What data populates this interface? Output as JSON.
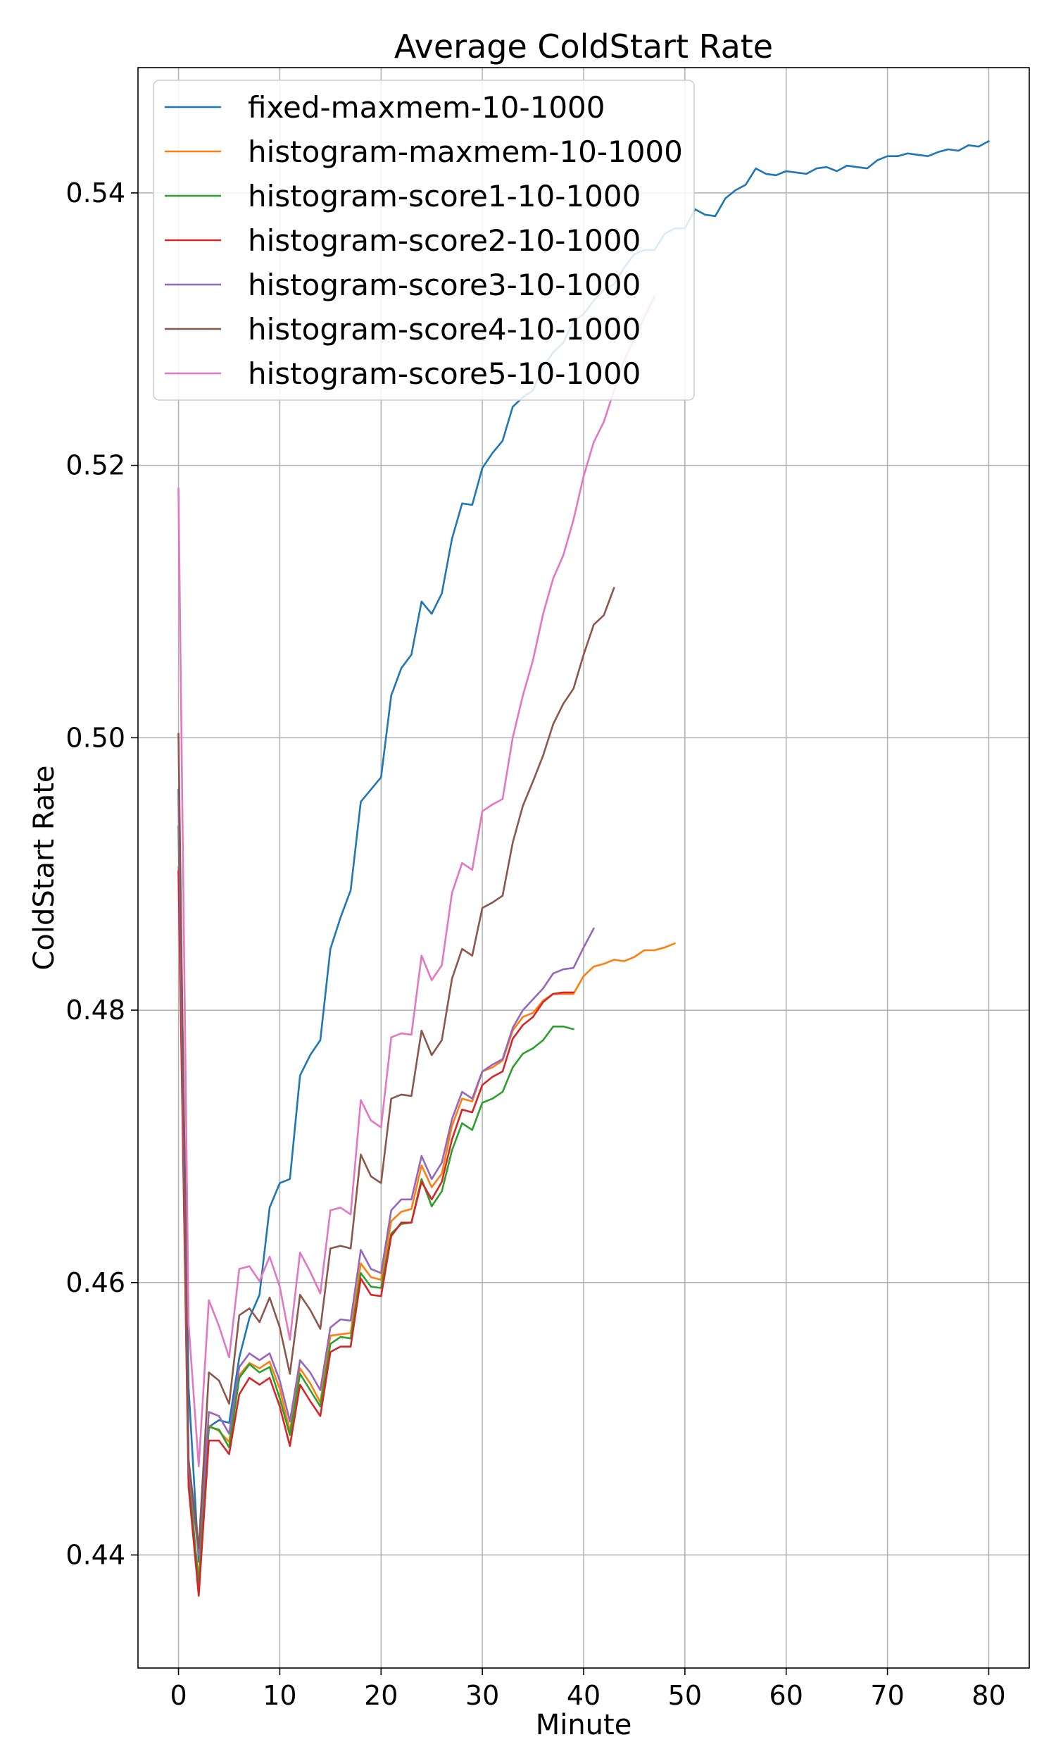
{
  "chart_data": {
    "type": "line",
    "title": "Average ColdStart Rate",
    "xlabel": "Minute",
    "ylabel": "ColdStart Rate",
    "xlim": [
      -4,
      84
    ],
    "ylim": [
      0.4317,
      0.5492
    ],
    "xticks": [
      0,
      10,
      20,
      30,
      40,
      50,
      60,
      70,
      80
    ],
    "yticks": [
      0.44,
      0.46,
      0.48,
      0.5,
      0.52,
      0.54
    ],
    "xtick_labels": [
      "0",
      "10",
      "20",
      "30",
      "40",
      "50",
      "60",
      "70",
      "80"
    ],
    "ytick_labels": [
      "0.44",
      "0.46",
      "0.48",
      "0.50",
      "0.52",
      "0.54"
    ],
    "grid": true,
    "legend_position": "upper-left",
    "series": [
      {
        "name": "fixed-maxmem-10-1000",
        "color": "#1f77b4",
        "x": [
          0,
          1,
          2,
          3,
          4,
          5,
          6,
          7,
          8,
          9,
          10,
          11,
          12,
          13,
          14,
          15,
          16,
          17,
          18,
          19,
          20,
          21,
          22,
          23,
          24,
          25,
          26,
          27,
          28,
          29,
          30,
          31,
          32,
          33,
          34,
          35,
          36,
          37,
          38,
          39,
          40,
          41,
          42,
          43,
          44,
          45,
          46,
          47,
          48,
          49,
          50,
          51,
          52,
          53,
          54,
          55,
          56,
          57,
          58,
          59,
          60,
          61,
          62,
          63,
          64,
          65,
          66,
          67,
          68,
          69,
          70,
          71,
          72,
          73,
          74,
          75,
          76,
          77,
          78,
          79,
          80
        ],
        "values": [
          0.4962,
          0.4523,
          0.4395,
          0.4494,
          0.4499,
          0.4497,
          0.4545,
          0.4574,
          0.4591,
          0.4655,
          0.4673,
          0.4676,
          0.4752,
          0.4767,
          0.4778,
          0.4845,
          0.4868,
          0.4888,
          0.4953,
          0.4962,
          0.4971,
          0.5031,
          0.5051,
          0.5061,
          0.51,
          0.5091,
          0.5106,
          0.5146,
          0.5172,
          0.5171,
          0.5198,
          0.5209,
          0.5218,
          0.5243,
          0.525,
          0.5255,
          0.5272,
          0.5283,
          0.529,
          0.5306,
          0.5311,
          0.5321,
          0.5329,
          0.5333,
          0.5345,
          0.5355,
          0.5358,
          0.5358,
          0.537,
          0.5374,
          0.5374,
          0.5388,
          0.5384,
          0.5383,
          0.5396,
          0.5402,
          0.5406,
          0.5418,
          0.5414,
          0.5413,
          0.5416,
          0.5415,
          0.5414,
          0.5418,
          0.5419,
          0.5416,
          0.542,
          0.5419,
          0.5418,
          0.5424,
          0.5427,
          0.5427,
          0.5429,
          0.5428,
          0.5427,
          0.543,
          0.5432,
          0.5431,
          0.5435,
          0.5434,
          0.5438
        ]
      },
      {
        "name": "histogram-maxmem-10-1000",
        "color": "#ff7f0e",
        "x": [
          0,
          1,
          2,
          3,
          4,
          5,
          6,
          7,
          8,
          9,
          10,
          11,
          12,
          13,
          14,
          15,
          16,
          17,
          18,
          19,
          20,
          21,
          22,
          23,
          24,
          25,
          26,
          27,
          28,
          29,
          30,
          31,
          32,
          33,
          34,
          35,
          36,
          37,
          38,
          39,
          40,
          41,
          42,
          43,
          44,
          45,
          46,
          47,
          48,
          49
        ],
        "values": [
          0.4905,
          0.445,
          0.4383,
          0.4495,
          0.4491,
          0.4483,
          0.4532,
          0.4541,
          0.4537,
          0.4542,
          0.4522,
          0.4491,
          0.4537,
          0.4526,
          0.4512,
          0.4561,
          0.4562,
          0.4563,
          0.4614,
          0.4604,
          0.4602,
          0.4645,
          0.4652,
          0.4654,
          0.4686,
          0.467,
          0.468,
          0.4715,
          0.4735,
          0.4733,
          0.4755,
          0.4758,
          0.4763,
          0.4785,
          0.4795,
          0.4798,
          0.4807,
          0.4812,
          0.4812,
          0.4812,
          0.4825,
          0.4832,
          0.4834,
          0.4837,
          0.4836,
          0.4839,
          0.4844,
          0.4844,
          0.4846,
          0.4849
        ]
      },
      {
        "name": "histogram-score1-10-1000",
        "color": "#2ca02c",
        "x": [
          0,
          1,
          2,
          3,
          4,
          5,
          6,
          7,
          8,
          9,
          10,
          11,
          12,
          13,
          14,
          15,
          16,
          17,
          18,
          19,
          20,
          21,
          22,
          23,
          24,
          25,
          26,
          27,
          28,
          29,
          30,
          31,
          32,
          33,
          34,
          35,
          36,
          37,
          38,
          39
        ],
        "values": [
          0.4935,
          0.446,
          0.4378,
          0.4494,
          0.4492,
          0.4479,
          0.453,
          0.454,
          0.4534,
          0.4538,
          0.4515,
          0.4488,
          0.4533,
          0.4521,
          0.4509,
          0.4555,
          0.456,
          0.4559,
          0.4607,
          0.4597,
          0.4596,
          0.4636,
          0.4643,
          0.4644,
          0.4676,
          0.4656,
          0.4667,
          0.4697,
          0.4717,
          0.4712,
          0.4732,
          0.4735,
          0.474,
          0.4758,
          0.4768,
          0.4772,
          0.4778,
          0.4788,
          0.4788,
          0.4786
        ]
      },
      {
        "name": "histogram-score2-10-1000",
        "color": "#d62728",
        "x": [
          0,
          1,
          2,
          3,
          4,
          5,
          6,
          7,
          8,
          9,
          10,
          11,
          12,
          13,
          14,
          15,
          16,
          17,
          18,
          19,
          20,
          21,
          22,
          23,
          24,
          25,
          26,
          27,
          28,
          29,
          30,
          31,
          32,
          33,
          34,
          35,
          36,
          37,
          38,
          39
        ],
        "values": [
          0.4902,
          0.445,
          0.437,
          0.4484,
          0.4484,
          0.4474,
          0.4518,
          0.453,
          0.4525,
          0.453,
          0.4509,
          0.448,
          0.4525,
          0.4513,
          0.4502,
          0.4549,
          0.4553,
          0.4553,
          0.4603,
          0.4591,
          0.459,
          0.4634,
          0.4644,
          0.4644,
          0.4674,
          0.4661,
          0.4674,
          0.4705,
          0.4727,
          0.4725,
          0.4745,
          0.4751,
          0.4755,
          0.4779,
          0.4789,
          0.4795,
          0.4806,
          0.4812,
          0.4813,
          0.4813
        ]
      },
      {
        "name": "histogram-score3-10-1000",
        "color": "#9467bd",
        "x": [
          0,
          1,
          2,
          3,
          4,
          5,
          6,
          7,
          8,
          9,
          10,
          11,
          12,
          13,
          14,
          15,
          16,
          17,
          18,
          19,
          20,
          21,
          22,
          23,
          24,
          25,
          26,
          27,
          28,
          29,
          30,
          31,
          32,
          33,
          34,
          35,
          36,
          37,
          38,
          39,
          40,
          41
        ],
        "values": [
          0.4955,
          0.4465,
          0.44,
          0.4505,
          0.4502,
          0.4489,
          0.4538,
          0.4548,
          0.4543,
          0.4548,
          0.4528,
          0.4498,
          0.4543,
          0.4534,
          0.4521,
          0.4567,
          0.4573,
          0.4572,
          0.4624,
          0.461,
          0.4607,
          0.4653,
          0.4661,
          0.4661,
          0.4693,
          0.4676,
          0.4688,
          0.472,
          0.474,
          0.4735,
          0.4755,
          0.476,
          0.4764,
          0.4787,
          0.48,
          0.4808,
          0.4816,
          0.4827,
          0.483,
          0.4831,
          0.4846,
          0.486
        ]
      },
      {
        "name": "histogram-score4-10-1000",
        "color": "#8c564b",
        "x": [
          0,
          1,
          2,
          3,
          4,
          5,
          6,
          7,
          8,
          9,
          10,
          11,
          12,
          13,
          14,
          15,
          16,
          17,
          18,
          19,
          20,
          21,
          22,
          23,
          24,
          25,
          26,
          27,
          28,
          29,
          30,
          31,
          32,
          33,
          34,
          35,
          36,
          37,
          38,
          39,
          40,
          41,
          42,
          43
        ],
        "values": [
          0.5003,
          0.447,
          0.4405,
          0.4534,
          0.4528,
          0.4511,
          0.4576,
          0.4581,
          0.4571,
          0.4589,
          0.4567,
          0.4533,
          0.4591,
          0.458,
          0.4566,
          0.4625,
          0.4627,
          0.4625,
          0.4694,
          0.4678,
          0.4673,
          0.4735,
          0.4738,
          0.4737,
          0.4785,
          0.4767,
          0.4778,
          0.4823,
          0.4845,
          0.484,
          0.4875,
          0.4879,
          0.4884,
          0.4923,
          0.495,
          0.4968,
          0.4987,
          0.501,
          0.5025,
          0.5036,
          0.5061,
          0.5083,
          0.509,
          0.511
        ]
      },
      {
        "name": "histogram-score5-10-1000",
        "color": "#e377c2",
        "x": [
          0,
          1,
          2,
          3,
          4,
          5,
          6,
          7,
          8,
          9,
          10,
          11,
          12,
          13,
          14,
          15,
          16,
          17,
          18,
          19,
          20,
          21,
          22,
          23,
          24,
          25,
          26,
          27,
          28,
          29,
          30,
          31,
          32,
          33,
          34,
          35,
          36,
          37,
          38,
          39,
          40,
          41,
          42,
          43,
          44,
          45,
          46,
          47
        ],
        "values": [
          0.5183,
          0.457,
          0.4465,
          0.4587,
          0.4568,
          0.4545,
          0.461,
          0.4612,
          0.4601,
          0.4619,
          0.4597,
          0.4558,
          0.4622,
          0.4608,
          0.4592,
          0.4653,
          0.4655,
          0.465,
          0.4734,
          0.4719,
          0.4714,
          0.478,
          0.4783,
          0.4782,
          0.484,
          0.4822,
          0.4833,
          0.4886,
          0.4908,
          0.4903,
          0.4946,
          0.4951,
          0.4955,
          0.5,
          0.5031,
          0.5057,
          0.5091,
          0.5117,
          0.5134,
          0.516,
          0.5192,
          0.5217,
          0.5232,
          0.5255,
          0.5277,
          0.5293,
          0.5309,
          0.5324
        ]
      }
    ]
  }
}
